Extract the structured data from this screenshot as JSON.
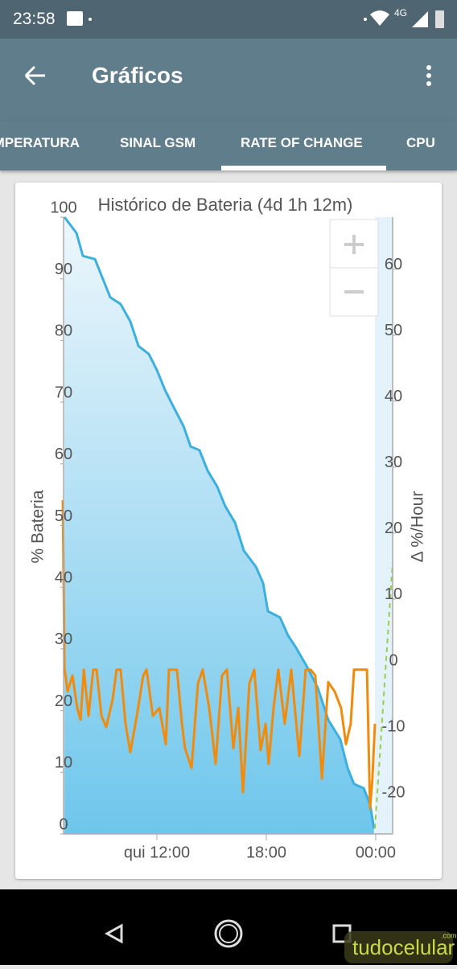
{
  "status_bar": {
    "time": "23:58",
    "network": "4G"
  },
  "app_bar": {
    "title": "Gráficos"
  },
  "tabs": [
    "TEMPERATURA",
    "SINAL GSM",
    "RATE OF CHANGE",
    "CPU"
  ],
  "chart_data": {
    "type": "line",
    "title": "Histórico de Bateria (4d 1h 12m)",
    "y_label": "% Bateria",
    "y2_label": "Δ %/Hour",
    "xlim": [
      6.88,
      24.93
    ],
    "xticks": [
      {
        "value": 12,
        "label": "qui 12:00"
      },
      {
        "value": 18,
        "label": "18:00"
      },
      {
        "value": 24,
        "label": "00:00"
      }
    ],
    "ylim": [
      0,
      100
    ],
    "yticks": [
      0,
      10,
      20,
      30,
      40,
      50,
      60,
      70,
      80,
      90,
      100
    ],
    "y2lim": [
      -25.6,
      67.9
    ],
    "y2ticks": [
      -20,
      -10,
      0,
      10,
      20,
      30,
      40,
      50,
      60
    ],
    "series": [
      {
        "color": "#3bb0de",
        "fill": true,
        "x": [
          6.93,
          7.59,
          7.94,
          8.6,
          8.91,
          9.44,
          10.01,
          10.54,
          10.99,
          11.56,
          12,
          12.44,
          12.88,
          13.46,
          13.85,
          14.34,
          14.78,
          15.31,
          15.75,
          16.28,
          16.77,
          17.43,
          17.82,
          18.09,
          18.75,
          19.19,
          19.63,
          20.25,
          20.82,
          21.4,
          22.06,
          22.46,
          22.81,
          23.34,
          23.69,
          23.91
        ],
        "values": [
          100,
          97.4,
          93.7,
          93.2,
          90.9,
          87,
          85.9,
          83.1,
          79.1,
          77.8,
          75.2,
          72,
          69.4,
          66.1,
          62.8,
          62.2,
          58.9,
          56.3,
          53.1,
          50.5,
          45.9,
          43.3,
          40.7,
          36.1,
          35.1,
          32.2,
          30.2,
          27,
          23.7,
          18.5,
          15.3,
          10.7,
          8.1,
          7.4,
          4.8,
          0.9
        ]
      },
      {
        "color": "#f28b0c",
        "axis": "y2",
        "x": [
          6.84,
          6.93,
          7.1,
          7.37,
          7.63,
          7.81,
          7.99,
          8.25,
          8.51,
          8.69,
          8.96,
          9.22,
          9.57,
          9.79,
          10.01,
          10.28,
          10.54,
          10.9,
          11.25,
          11.43,
          11.78,
          12.13,
          12.49,
          12.66,
          13.1,
          13.37,
          13.54,
          13.9,
          14.25,
          14.51,
          14.87,
          15.22,
          15.57,
          15.84,
          16.19,
          16.46,
          16.72,
          17.07,
          17.34,
          17.69,
          17.96,
          18.13,
          18.4,
          18.66,
          19.01,
          19.37,
          19.81,
          20.16,
          20.43,
          20.69,
          21.05,
          21.4,
          21.75,
          22.1,
          22.37,
          22.63,
          22.81,
          23.34,
          23.52,
          23.69,
          23.82,
          23.96
        ],
        "values": [
          25,
          -0.4,
          -4,
          -1.6,
          -6.5,
          -8.3,
          -0.7,
          -7.7,
          -0.7,
          -0.7,
          -7.7,
          -9.4,
          -5.2,
          -0.7,
          -0.7,
          -8.9,
          -13.2,
          -7.7,
          -1.6,
          -0.7,
          -7.7,
          -6.5,
          -12,
          -0.7,
          -0.7,
          -8.9,
          -12.6,
          -15.6,
          -2.8,
          -0.7,
          -6.5,
          -15,
          -1.6,
          -0.7,
          -12.6,
          -6.5,
          -19.3,
          -2.8,
          -0.7,
          -12.9,
          -8.9,
          -15,
          -6.5,
          -0.7,
          -8.9,
          -0.7,
          -13.8,
          -0.7,
          -0.7,
          -1.6,
          -17.2,
          -2.6,
          -4,
          -6.5,
          -12,
          -8.9,
          -0.7,
          -0.7,
          -0.7,
          -21.7,
          -17.4,
          -8.9
        ]
      },
      {
        "color": "#9ccc4e",
        "axis": "y2",
        "dashed": true,
        "x": [
          23.96,
          24.93
        ],
        "values": [
          -24.8,
          15.5
        ]
      }
    ]
  },
  "watermark": {
    "text": "tudocelular",
    "suffix": ".com"
  }
}
